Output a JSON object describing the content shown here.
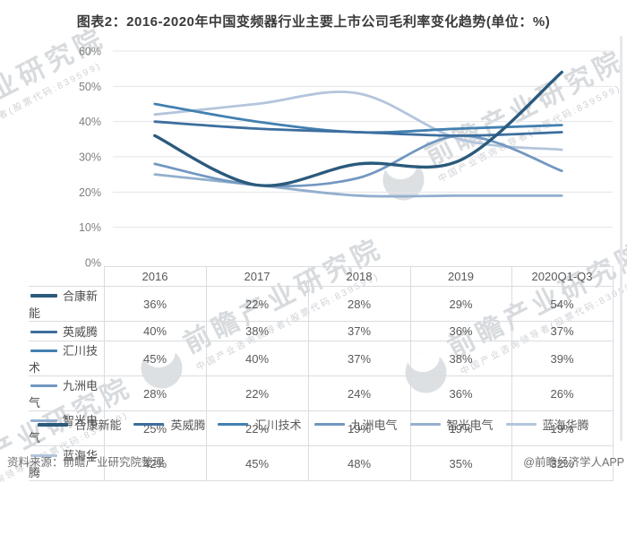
{
  "title": "图表2：2016-2020年中国变频器行业主要上市公司毛利率变化趋势(单位：%)",
  "chart_data": {
    "type": "line",
    "smooth": true,
    "categories": [
      "2016",
      "2017",
      "2018",
      "2019",
      "2020Q1-Q3"
    ],
    "series": [
      {
        "name": "合康新能",
        "color": "#2B5A7C",
        "values": [
          36,
          22,
          28,
          29,
          54
        ]
      },
      {
        "name": "英威腾",
        "color": "#3D6E9E",
        "values": [
          40,
          38,
          37,
          36,
          37
        ]
      },
      {
        "name": "汇川技术",
        "color": "#4380B0",
        "values": [
          45,
          40,
          37,
          38,
          39
        ]
      },
      {
        "name": "九洲电气",
        "color": "#7297C1",
        "values": [
          28,
          22,
          24,
          36,
          26
        ]
      },
      {
        "name": "智光电气",
        "color": "#94AFCE",
        "values": [
          25,
          22,
          19,
          19,
          19
        ]
      },
      {
        "name": "蓝海华腾",
        "color": "#B3C5DC",
        "values": [
          42,
          45,
          48,
          35,
          32
        ]
      }
    ],
    "ylim": [
      0,
      60
    ],
    "ytick_step": 10,
    "ytick_labels": [
      "0%",
      "10%",
      "20%",
      "30%",
      "40%",
      "50%",
      "60%"
    ],
    "unit": "%",
    "xlabel": "",
    "ylabel": "",
    "grid": "horizontal",
    "legend_position": "bottom"
  },
  "table": {
    "corner": "",
    "headers": [
      "2016",
      "2017",
      "2018",
      "2019",
      "2020Q1-Q3"
    ],
    "rows": [
      {
        "name": "合康新能",
        "values": [
          "36%",
          "22%",
          "28%",
          "29%",
          "54%"
        ]
      },
      {
        "name": "英威腾",
        "values": [
          "40%",
          "38%",
          "37%",
          "36%",
          "37%"
        ]
      },
      {
        "name": "汇川技术",
        "values": [
          "45%",
          "40%",
          "37%",
          "38%",
          "39%"
        ]
      },
      {
        "name": "九洲电气",
        "values": [
          "28%",
          "22%",
          "24%",
          "36%",
          "26%"
        ]
      },
      {
        "name": "智光电气",
        "values": [
          "25%",
          "22%",
          "19%",
          "19%",
          "19%"
        ]
      },
      {
        "name": "蓝海华腾",
        "values": [
          "42%",
          "45%",
          "48%",
          "35%",
          "32%"
        ]
      }
    ]
  },
  "watermark": {
    "text": "前瞻产业研究院",
    "subtext": "中国产业咨询领导者(股票代码:839599)"
  },
  "footer": {
    "source": "资料来源：前瞻产业研究院整理",
    "credit": "@前瞻经济学人APP"
  },
  "colors": {
    "grid": "#e4e4e8",
    "axis_label": "#7f7f7f",
    "table_border": "#dadce0",
    "title_text": "#3a3a3a"
  }
}
